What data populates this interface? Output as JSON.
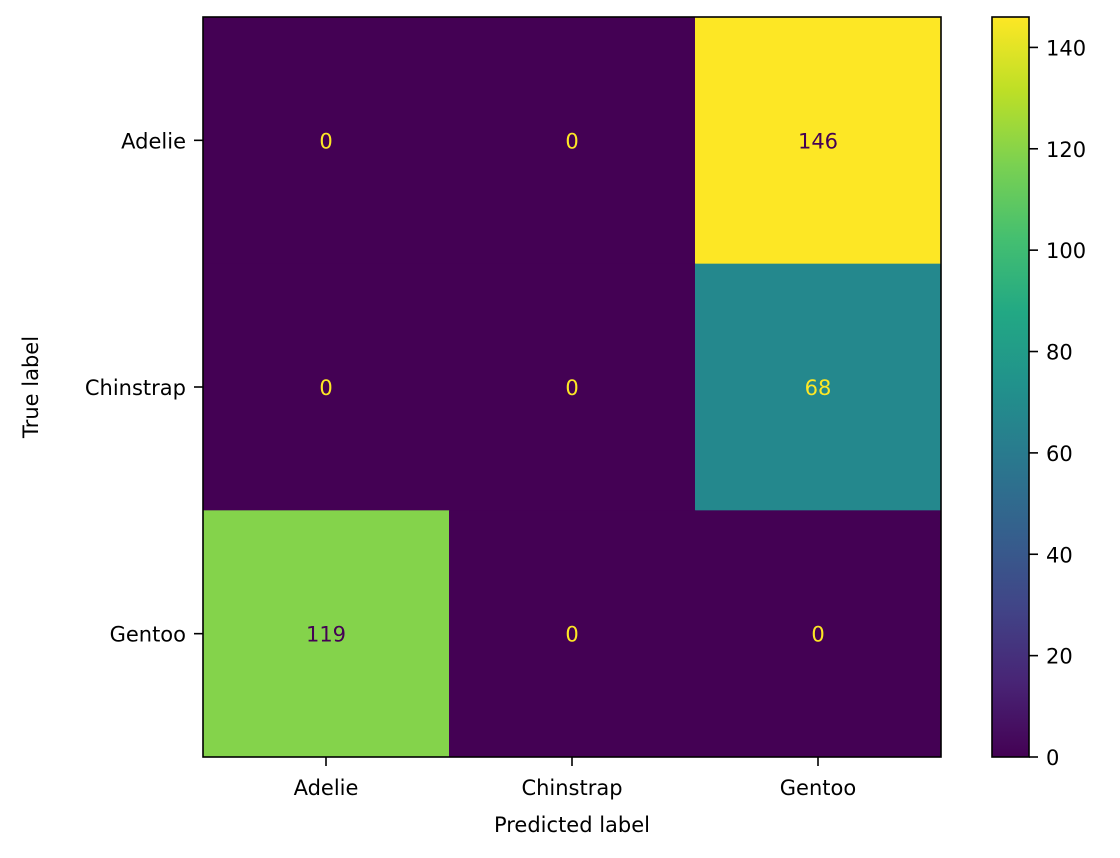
{
  "chart_data": {
    "type": "heatmap",
    "title": "",
    "xlabel": "Predicted label",
    "ylabel": "True label",
    "x_categories": [
      "Adelie",
      "Chinstrap",
      "Gentoo"
    ],
    "y_categories": [
      "Adelie",
      "Chinstrap",
      "Gentoo"
    ],
    "matrix": [
      [
        0,
        0,
        146
      ],
      [
        0,
        0,
        68
      ],
      [
        119,
        0,
        0
      ]
    ],
    "colormap": "viridis",
    "colorbar": {
      "min": 0,
      "max": 146,
      "ticks": [
        0,
        20,
        40,
        60,
        80,
        100,
        120,
        140
      ]
    },
    "grid": false
  }
}
